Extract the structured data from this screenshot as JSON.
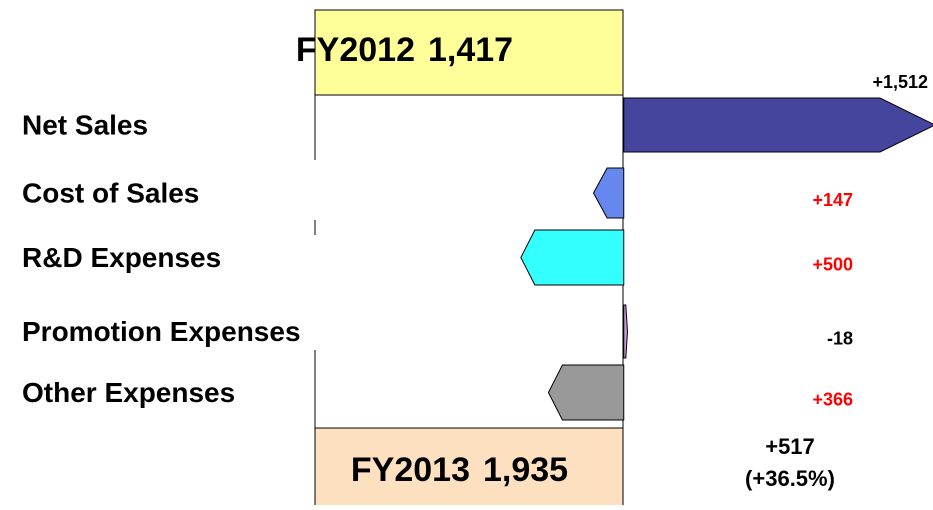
{
  "chart_data": {
    "type": "waterfall",
    "start": {
      "label": "FY2012",
      "value": 1417,
      "value_label": "1,417",
      "color": "#ffff99"
    },
    "end": {
      "label": "FY2013",
      "value": 1935,
      "value_label": "1,935",
      "color": "#fde0c0"
    },
    "change": {
      "value_label": "+517",
      "percent_label": "(+36.5%)"
    },
    "categories": [
      "Net Sales",
      "Cost of Sales",
      "R&D Expenses",
      "Promotion Expenses",
      "Other Expenses"
    ],
    "values": [
      1512,
      -147,
      -500,
      18,
      -366
    ],
    "value_labels": [
      "+1,512",
      "+147",
      "+500",
      "-18",
      "+366"
    ],
    "colors": [
      "#45459e",
      "#6688ee",
      "#33ffff",
      "#cc99dd",
      "#999999"
    ],
    "negative_label_color": "#ff0000",
    "xlim": [
      -1500,
      1512
    ]
  }
}
